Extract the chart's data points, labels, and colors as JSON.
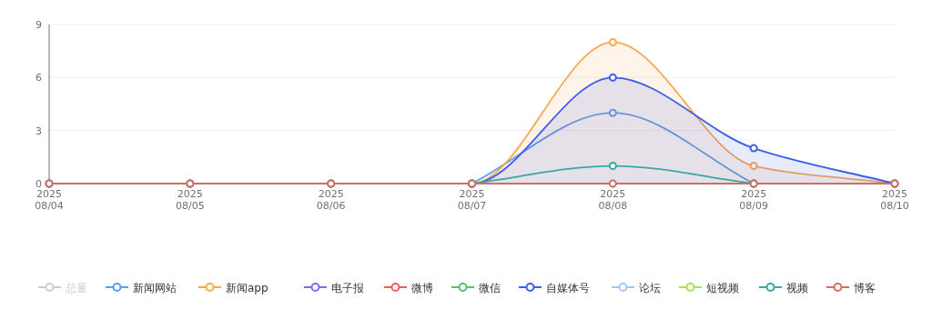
{
  "chart_data": {
    "type": "line",
    "categories": [
      "2025\n08/04",
      "2025\n08/05",
      "2025\n08/06",
      "2025\n08/07",
      "2025\n08/08",
      "2025\n08/09",
      "2025\n08/10"
    ],
    "ylim": [
      0,
      9
    ],
    "yticks": [
      0,
      3,
      6,
      9
    ],
    "grid": "y",
    "legend": "bottom",
    "marker": "circle",
    "line_style": "solid",
    "series": [
      {
        "name": "总量",
        "color": "#cccccc",
        "values": [
          null,
          null,
          null,
          null,
          null,
          null,
          null
        ]
      },
      {
        "name": "新闻网站",
        "color": "#5b9cf0",
        "values": [
          null,
          null,
          null,
          0,
          4,
          0,
          null
        ]
      },
      {
        "name": "新闻app",
        "color": "#f7a84f",
        "type": "area",
        "values": [
          0,
          0,
          0,
          0,
          8,
          1,
          0
        ]
      },
      {
        "name": "电子报",
        "color": "#7b6cf0",
        "values": [
          null,
          null,
          null,
          null,
          null,
          null,
          null
        ]
      },
      {
        "name": "微博",
        "color": "#f05b5b",
        "values": [
          null,
          null,
          null,
          null,
          null,
          null,
          null
        ]
      },
      {
        "name": "微信",
        "color": "#4fc46b",
        "values": [
          null,
          null,
          null,
          null,
          null,
          null,
          null
        ]
      },
      {
        "name": "自媒体号",
        "color": "#3c5ee8",
        "type": "area",
        "values": [
          0,
          0,
          0,
          0,
          6,
          2,
          0
        ]
      },
      {
        "name": "论坛",
        "color": "#a0c8f8",
        "values": [
          null,
          null,
          null,
          null,
          null,
          null,
          null
        ]
      },
      {
        "name": "短视频",
        "color": "#a8e05a",
        "values": [
          null,
          null,
          null,
          null,
          null,
          null,
          null
        ]
      },
      {
        "name": "视频",
        "color": "#3aa6a6",
        "values": [
          null,
          null,
          null,
          0,
          1,
          0,
          null
        ]
      },
      {
        "name": "博客",
        "color": "#d07060",
        "values": [
          0,
          0,
          0,
          0,
          0,
          0,
          0
        ]
      }
    ]
  }
}
